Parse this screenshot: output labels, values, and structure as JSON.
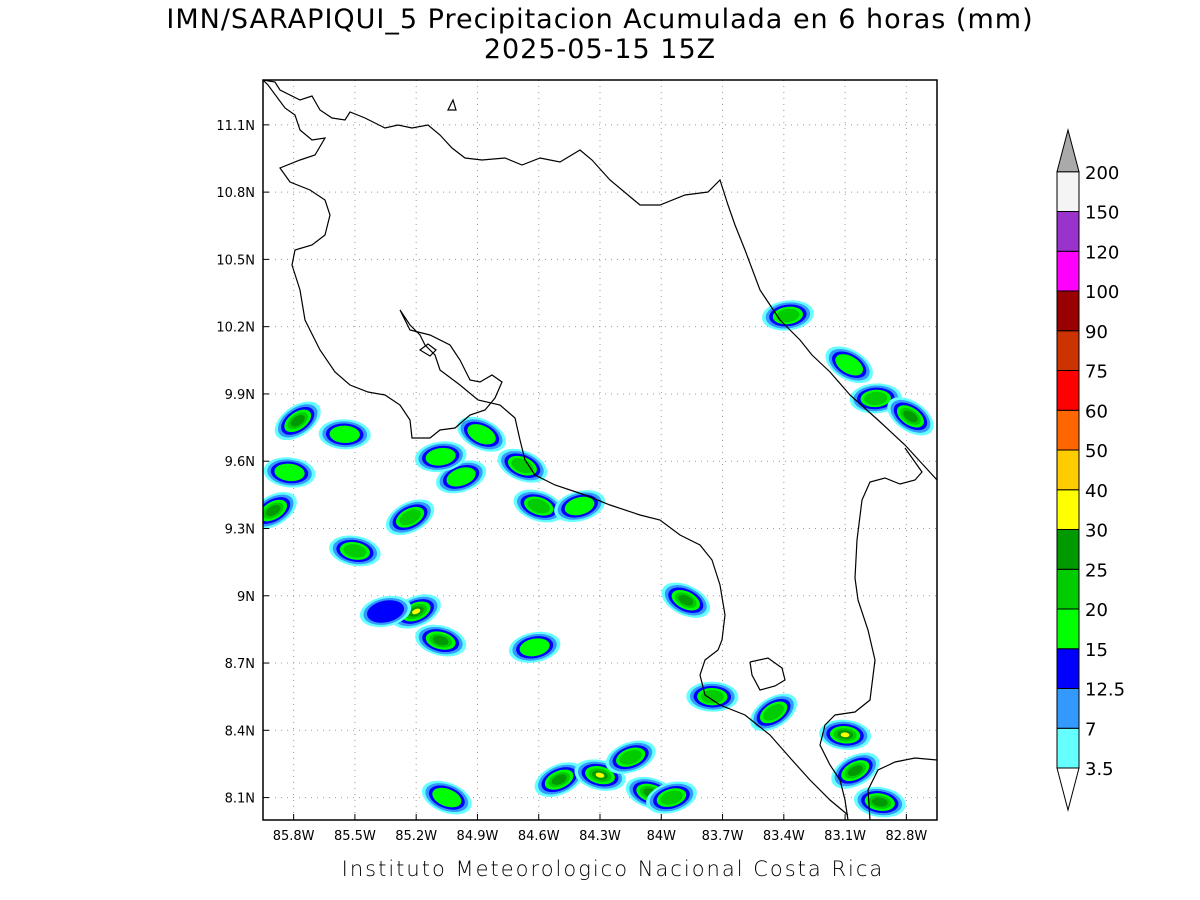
{
  "title": "IMN/SARAPIQUI_5 Precipitacion Acumulada en 6 horas (mm)",
  "subtitle": "2025-05-15 15Z",
  "credit": "Instituto Meteorologico Nacional Costa Rica",
  "map": {
    "lon_ticks": [
      {
        "lon": -85.8,
        "label": "85.8W"
      },
      {
        "lon": -85.5,
        "label": "85.5W"
      },
      {
        "lon": -85.2,
        "label": "85.2W"
      },
      {
        "lon": -84.9,
        "label": "84.9W"
      },
      {
        "lon": -84.6,
        "label": "84.6W"
      },
      {
        "lon": -84.3,
        "label": "84.3W"
      },
      {
        "lon": -84.0,
        "label": "84W"
      },
      {
        "lon": -83.7,
        "label": "83.7W"
      },
      {
        "lon": -83.4,
        "label": "83.4W"
      },
      {
        "lon": -83.1,
        "label": "83.1W"
      },
      {
        "lon": -82.8,
        "label": "82.8W"
      }
    ],
    "lat_ticks": [
      {
        "lat": 11.1,
        "label": "11.1N"
      },
      {
        "lat": 10.8,
        "label": "10.8N"
      },
      {
        "lat": 10.5,
        "label": "10.5N"
      },
      {
        "lat": 10.2,
        "label": "10.2N"
      },
      {
        "lat": 9.9,
        "label": "9.9N"
      },
      {
        "lat": 9.6,
        "label": "9.6N"
      },
      {
        "lat": 9.3,
        "label": "9.3N"
      },
      {
        "lat": 9.0,
        "label": "9N"
      },
      {
        "lat": 8.7,
        "label": "8.7N"
      },
      {
        "lat": 8.4,
        "label": "8.4N"
      },
      {
        "lat": 8.1,
        "label": "8.1N"
      }
    ],
    "lon_range": [
      -85.95,
      -82.65
    ],
    "lat_range": [
      8.0,
      11.3
    ],
    "grid": true
  },
  "legend": {
    "levels": [
      {
        "label": "3.5",
        "color": "#66ffff"
      },
      {
        "label": "7",
        "color": "#3399ff"
      },
      {
        "label": "12.5",
        "color": "#0000ff"
      },
      {
        "label": "15",
        "color": "#00ff00"
      },
      {
        "label": "20",
        "color": "#00cc00"
      },
      {
        "label": "25",
        "color": "#009900"
      },
      {
        "label": "30",
        "color": "#ffff00"
      },
      {
        "label": "40",
        "color": "#ffcc00"
      },
      {
        "label": "50",
        "color": "#ff6600"
      },
      {
        "label": "60",
        "color": "#ff0000"
      },
      {
        "label": "75",
        "color": "#cc3300"
      },
      {
        "label": "90",
        "color": "#990000"
      },
      {
        "label": "100",
        "color": "#ff00ff"
      },
      {
        "label": "120",
        "color": "#9933cc"
      },
      {
        "label": "150",
        "color": "#f4f4f4"
      },
      {
        "label": "200",
        "color": "#aaaaaa"
      }
    ]
  },
  "rain_cells": [
    {
      "lon": -85.78,
      "lat": 9.78,
      "level": 5
    },
    {
      "lon": -85.55,
      "lat": 9.72,
      "level": 3
    },
    {
      "lon": -85.9,
      "lat": 9.38,
      "level": 5
    },
    {
      "lon": -85.82,
      "lat": 9.55,
      "level": 3
    },
    {
      "lon": -85.23,
      "lat": 9.35,
      "level": 4
    },
    {
      "lon": -85.5,
      "lat": 9.2,
      "level": 4
    },
    {
      "lon": -85.2,
      "lat": 8.93,
      "level": 6
    },
    {
      "lon": -85.08,
      "lat": 8.8,
      "level": 5
    },
    {
      "lon": -84.98,
      "lat": 9.53,
      "level": 3
    },
    {
      "lon": -84.6,
      "lat": 9.4,
      "level": 4
    },
    {
      "lon": -84.4,
      "lat": 9.4,
      "level": 3
    },
    {
      "lon": -84.68,
      "lat": 9.58,
      "level": 4
    },
    {
      "lon": -84.62,
      "lat": 8.77,
      "level": 3
    },
    {
      "lon": -83.88,
      "lat": 8.98,
      "level": 5
    },
    {
      "lon": -83.38,
      "lat": 10.25,
      "level": 4
    },
    {
      "lon": -83.08,
      "lat": 10.03,
      "level": 3
    },
    {
      "lon": -82.95,
      "lat": 9.88,
      "level": 4
    },
    {
      "lon": -82.78,
      "lat": 9.8,
      "level": 5
    },
    {
      "lon": -83.75,
      "lat": 8.55,
      "level": 4
    },
    {
      "lon": -83.45,
      "lat": 8.48,
      "level": 4
    },
    {
      "lon": -83.1,
      "lat": 8.38,
      "level": 6
    },
    {
      "lon": -83.05,
      "lat": 8.22,
      "level": 5
    },
    {
      "lon": -82.93,
      "lat": 8.08,
      "level": 5
    },
    {
      "lon": -84.5,
      "lat": 8.18,
      "level": 5
    },
    {
      "lon": -84.3,
      "lat": 8.2,
      "level": 6
    },
    {
      "lon": -84.15,
      "lat": 8.28,
      "level": 4
    },
    {
      "lon": -84.05,
      "lat": 8.12,
      "level": 5
    },
    {
      "lon": -83.95,
      "lat": 8.1,
      "level": 4
    },
    {
      "lon": -85.05,
      "lat": 8.1,
      "level": 3
    },
    {
      "lon": -85.35,
      "lat": 8.93,
      "level": 2
    },
    {
      "lon": -84.88,
      "lat": 9.72,
      "level": 3
    },
    {
      "lon": -85.08,
      "lat": 9.62,
      "level": 3
    }
  ]
}
